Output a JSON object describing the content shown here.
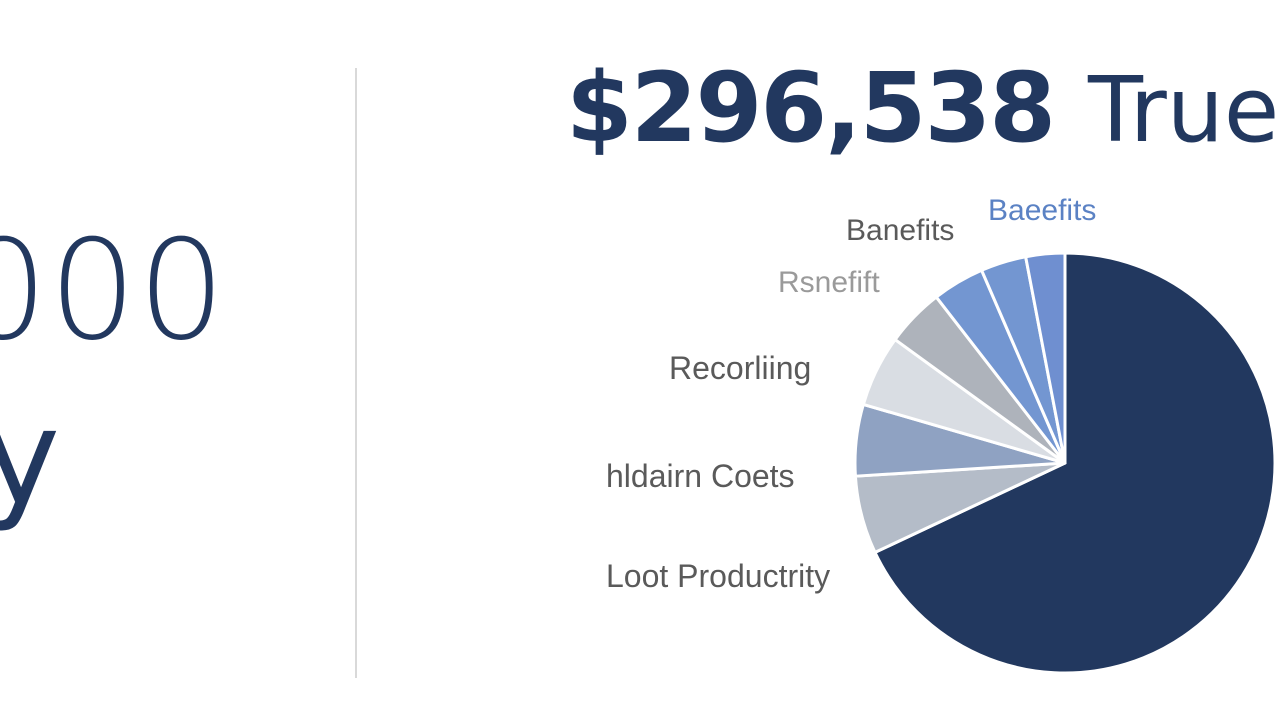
{
  "left_panel": {
    "figure": "000",
    "caption": "y"
  },
  "headline": {
    "amount": "$296,538",
    "suffix": "True"
  },
  "colors": {
    "primary": "#22385f",
    "divider": "#d9d9d9",
    "label_gray": "#555555",
    "label_light": "#8a8a8a",
    "label_blue": "#5b82c4"
  },
  "chart_data": {
    "type": "pie",
    "slices": [
      {
        "label": "Lost Productivity",
        "value": 68.0,
        "color": "#22385f"
      },
      {
        "label": "",
        "value": 6.0,
        "color": "#b4bcc8"
      },
      {
        "label": "",
        "value": 5.5,
        "color": "#8fa2c2"
      },
      {
        "label": "",
        "value": 5.5,
        "color": "#d9dde3"
      },
      {
        "label": "",
        "value": 4.5,
        "color": "#aeb3bb"
      },
      {
        "label": "",
        "value": 4.0,
        "color": "#7396d1"
      },
      {
        "label": "",
        "value": 3.5,
        "color": "#7396d1"
      },
      {
        "label": "",
        "value": 3.0,
        "color": "#6f8fd0"
      }
    ],
    "labels": [
      {
        "text": "Baeefits",
        "color": "#5b82c4"
      },
      {
        "text": "Banefits",
        "color": "#5a5a5a"
      },
      {
        "text": "Rsnefift",
        "color": "#9a9a9a"
      },
      {
        "text": "Recorliing",
        "color": "#5a5a5a"
      },
      {
        "text": "hldairn Coets",
        "color": "#5a5a5a"
      },
      {
        "text": "Loot Productrity",
        "color": "#5a5a5a"
      }
    ],
    "legend": "none"
  }
}
